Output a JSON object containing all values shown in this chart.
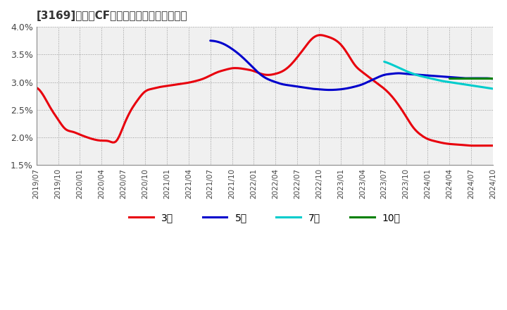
{
  "title": "[3169]　営業CFマージンの標準偏差の推移",
  "ylim": [
    0.015,
    0.04
  ],
  "yticks": [
    0.015,
    0.02,
    0.025,
    0.03,
    0.035,
    0.04
  ],
  "ytick_labels": [
    "1.5%",
    "2.0%",
    "2.5%",
    "3.0%",
    "3.5%",
    "4.0%"
  ],
  "background_color": "#ffffff",
  "plot_bg_color": "#f0f0f0",
  "series": {
    "3y": {
      "color": "#e8000d",
      "label": "3年",
      "x": [
        0,
        1,
        2,
        3,
        4,
        5,
        6,
        7,
        8,
        9,
        10,
        11,
        12,
        13,
        14,
        15,
        16,
        17,
        18,
        19,
        20,
        21,
        22,
        23,
        24,
        25,
        26,
        27,
        28,
        29,
        30,
        31,
        32,
        33,
        34,
        35,
        36,
        37,
        38,
        39,
        40,
        41,
        42,
        43,
        44,
        45,
        46,
        47,
        48,
        49,
        50,
        51,
        52,
        53,
        54,
        55,
        56,
        57,
        58,
        59,
        60,
        61,
        62,
        63
      ],
      "y": [
        0.029,
        0.0275,
        0.0252,
        0.0232,
        0.0215,
        0.021,
        0.0205,
        0.02,
        0.0196,
        0.0194,
        0.0193,
        0.0193,
        0.022,
        0.0248,
        0.0268,
        0.0283,
        0.0288,
        0.0291,
        0.0293,
        0.0295,
        0.0297,
        0.0299,
        0.0302,
        0.0306,
        0.0312,
        0.0318,
        0.0322,
        0.0325,
        0.0325,
        0.0323,
        0.032,
        0.0315,
        0.0313,
        0.0315,
        0.032,
        0.033,
        0.0345,
        0.0362,
        0.0378,
        0.0385,
        0.0383,
        0.0378,
        0.0368,
        0.035,
        0.033,
        0.0318,
        0.0308,
        0.0298,
        0.0288,
        0.0275,
        0.0258,
        0.0238,
        0.0218,
        0.0205,
        0.0197,
        0.0193,
        0.019,
        0.0188,
        0.0187,
        0.0186,
        0.0185,
        0.0185,
        0.0185,
        0.0185
      ]
    },
    "5y": {
      "color": "#0000cc",
      "label": "5年",
      "x": [
        24,
        25,
        26,
        27,
        28,
        29,
        30,
        31,
        32,
        33,
        34,
        35,
        36,
        37,
        38,
        39,
        40,
        41,
        42,
        43,
        44,
        45,
        46,
        47,
        48,
        49,
        50,
        51,
        52,
        53,
        54,
        55,
        56,
        57,
        58,
        59,
        60,
        61,
        62,
        63
      ],
      "y": [
        0.0375,
        0.0373,
        0.0368,
        0.036,
        0.035,
        0.0338,
        0.0325,
        0.0313,
        0.0305,
        0.03,
        0.0296,
        0.0294,
        0.0292,
        0.029,
        0.0288,
        0.0287,
        0.0286,
        0.0286,
        0.0287,
        0.0289,
        0.0292,
        0.0296,
        0.0302,
        0.0308,
        0.0313,
        0.0315,
        0.0316,
        0.0315,
        0.0314,
        0.0313,
        0.0312,
        0.0311,
        0.031,
        0.0309,
        0.0308,
        0.0307,
        0.0307,
        0.0307,
        0.0307,
        0.0306
      ]
    },
    "7y": {
      "color": "#00cccc",
      "label": "7年",
      "x": [
        48,
        49,
        50,
        51,
        52,
        53,
        54,
        55,
        56,
        57,
        58,
        59,
        60,
        61,
        62,
        63
      ],
      "y": [
        0.0337,
        0.0332,
        0.0326,
        0.032,
        0.0315,
        0.0311,
        0.0308,
        0.0305,
        0.0302,
        0.03,
        0.0298,
        0.0296,
        0.0294,
        0.0292,
        0.029,
        0.0288
      ]
    },
    "10y": {
      "color": "#008000",
      "label": "10年",
      "x": [
        57,
        58,
        59,
        60,
        61,
        62,
        63
      ],
      "y": [
        0.0307,
        0.0307,
        0.0307,
        0.0307,
        0.0307,
        0.0307,
        0.0307
      ]
    }
  },
  "xtick_labels": [
    "2019/07",
    "2019/10",
    "2020/01",
    "2020/04",
    "2020/07",
    "2020/10",
    "2021/01",
    "2021/04",
    "2021/07",
    "2021/10",
    "2022/01",
    "2022/04",
    "2022/07",
    "2022/10",
    "2023/01",
    "2023/04",
    "2023/07",
    "2023/10",
    "2024/01",
    "2024/04",
    "2024/07",
    "2024/10"
  ],
  "xtick_positions": [
    0,
    3,
    6,
    9,
    12,
    15,
    18,
    21,
    24,
    27,
    30,
    33,
    36,
    39,
    42,
    45,
    48,
    51,
    54,
    57,
    60,
    63
  ],
  "legend_labels": [
    "3年",
    "5年",
    "7年",
    "10年"
  ],
  "legend_colors": [
    "#e8000d",
    "#0000cc",
    "#00cccc",
    "#008000"
  ]
}
